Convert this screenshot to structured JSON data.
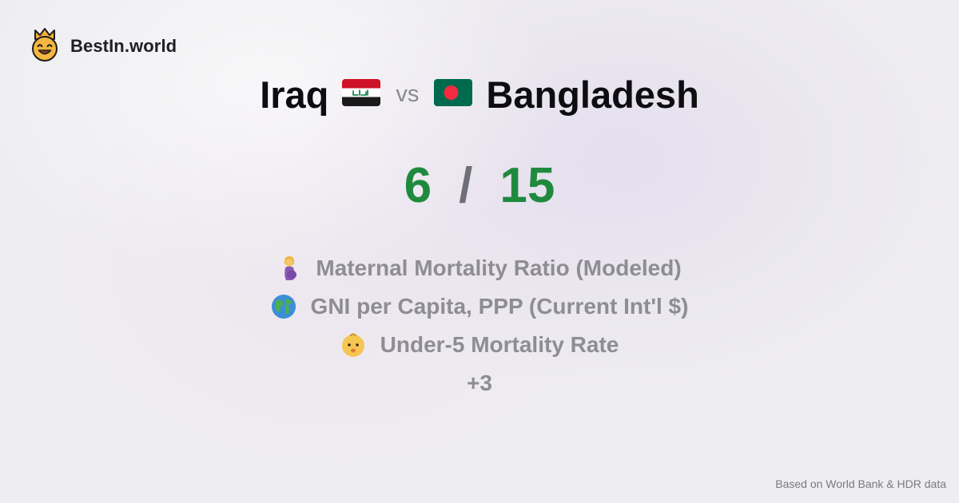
{
  "brand": {
    "name": "BestIn.world",
    "logo_icon": "crown-smiley-icon"
  },
  "comparison": {
    "left_country": "Iraq",
    "left_flag_icon": "iraq-flag-icon",
    "vs_label": "vs",
    "right_country": "Bangladesh",
    "right_flag_icon": "bangladesh-flag-icon"
  },
  "score": {
    "left": "6",
    "separator": "/",
    "right": "15"
  },
  "metrics": [
    {
      "icon": "pregnant-woman-icon",
      "label": "Maternal Mortality Ratio (Modeled)"
    },
    {
      "icon": "globe-icon",
      "label": "GNI per Capita, PPP (Current Int'l $)"
    },
    {
      "icon": "baby-icon",
      "label": "Under-5 Mortality Rate"
    }
  ],
  "more_label": "+3",
  "footer": {
    "source": "Based on World Bank & HDR data"
  },
  "colors": {
    "score_green": "#1f8a3d",
    "text_dark": "#0d0d12",
    "text_muted": "#8d8d93",
    "iraq_red": "#ce1126",
    "iraq_green": "#007a3d",
    "bangladesh_green": "#006a4e",
    "bangladesh_red": "#f42a41"
  }
}
